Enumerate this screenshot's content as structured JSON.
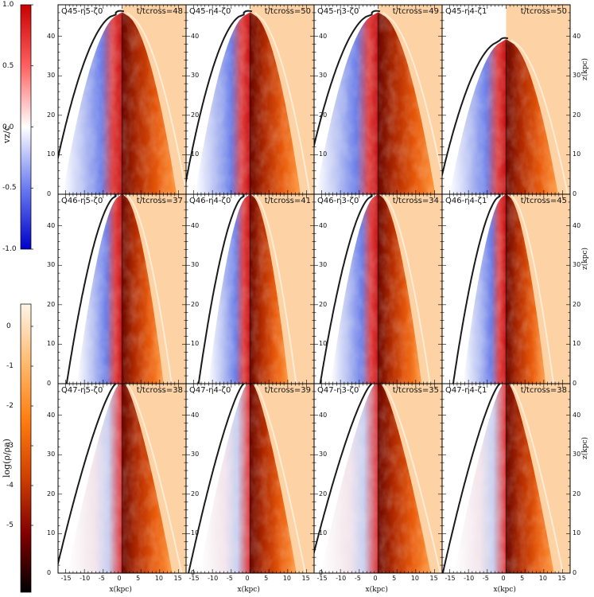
{
  "colorbars": {
    "velocity": {
      "label": "vz/c",
      "ticks": [
        "1.0",
        "0.5",
        "0.0",
        "-0.5",
        "-1.0"
      ],
      "colors": [
        "#d00000",
        "#ff6060",
        "#ffffff",
        "#6a7cf0",
        "#0000c8"
      ]
    },
    "density": {
      "label": "log(ρ/ρa)",
      "ticks": [
        "0",
        "-1",
        "-2",
        "-3",
        "-4",
        "-5"
      ],
      "colors": [
        "#fff5e8",
        "#ffbb70",
        "#ff7e10",
        "#d04000",
        "#800000",
        "#000000"
      ]
    }
  },
  "panels": [
    {
      "title": "Q45-η5-ζ0",
      "time": "t/tcross=48",
      "row": 0,
      "col": 0
    },
    {
      "title": "Q45-η4-ζ0",
      "time": "t/tcross=50",
      "row": 0,
      "col": 1
    },
    {
      "title": "Q45-η3-ζ0",
      "time": "t/tcross=49",
      "row": 0,
      "col": 2
    },
    {
      "title": "Q45-η4-ζ1",
      "time": "t/tcross=50",
      "row": 0,
      "col": 3
    },
    {
      "title": "Q46-η5-ζ0",
      "time": "t/tcross=37",
      "row": 1,
      "col": 0
    },
    {
      "title": "Q46-η4-ζ0",
      "time": "t/tcross=41",
      "row": 1,
      "col": 1
    },
    {
      "title": "Q46-η3-ζ0",
      "time": "t/tcross=34",
      "row": 1,
      "col": 2
    },
    {
      "title": "Q46-η4-ζ1",
      "time": "t/tcross=45",
      "row": 1,
      "col": 3
    },
    {
      "title": "Q47-η5-ζ0",
      "time": "t/tcross=38",
      "row": 2,
      "col": 0
    },
    {
      "title": "Q47-η4-ζ0",
      "time": "t/tcross=39",
      "row": 2,
      "col": 1
    },
    {
      "title": "Q47-η3-ζ0",
      "time": "t/tcross=35",
      "row": 2,
      "col": 2
    },
    {
      "title": "Q47-η4-ζ1",
      "time": "t/tcross=38",
      "row": 2,
      "col": 3
    }
  ],
  "axes": {
    "x_label": "x(kpc)",
    "z_label": "z(kpc)",
    "x_ticks": [
      "-15",
      "-10",
      "-5",
      "0",
      "5",
      "10",
      "15"
    ],
    "z_ticks": [
      "0",
      "10",
      "20",
      "30",
      "40"
    ]
  },
  "colors": {
    "ambient": "#fdd3a6",
    "frame": "#000000",
    "contour": "#1a1a1a"
  }
}
